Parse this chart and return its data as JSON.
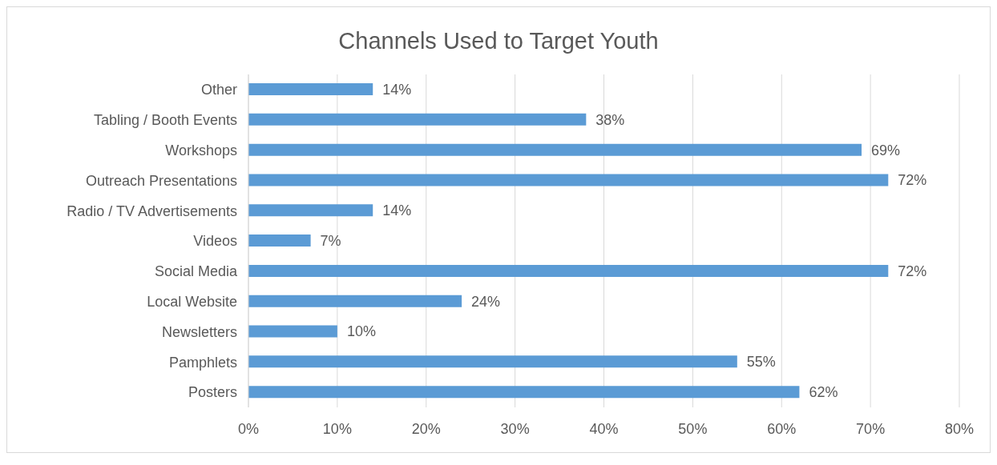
{
  "chart_data": {
    "type": "bar",
    "orientation": "horizontal",
    "title": "Channels Used to Target Youth",
    "categories": [
      "Other",
      "Tabling / Booth Events",
      "Workshops",
      "Outreach Presentations",
      "Radio / TV Advertisements",
      "Videos",
      "Social Media",
      "Local Website",
      "Newsletters",
      "Pamphlets",
      "Posters"
    ],
    "values": [
      14,
      38,
      69,
      72,
      14,
      7,
      72,
      24,
      10,
      55,
      62
    ],
    "value_labels": [
      "14%",
      "38%",
      "69%",
      "72%",
      "14%",
      "7%",
      "72%",
      "24%",
      "10%",
      "55%",
      "62%"
    ],
    "color": "#5b9bd5",
    "xlim": [
      0,
      80
    ],
    "xticks": [
      {
        "value": 0,
        "label": "0%"
      },
      {
        "value": 10,
        "label": "10%"
      },
      {
        "value": 20,
        "label": "20%"
      },
      {
        "value": 30,
        "label": "30%"
      },
      {
        "value": 40,
        "label": "40%"
      },
      {
        "value": 50,
        "label": "50%"
      },
      {
        "value": 60,
        "label": "60%"
      },
      {
        "value": 70,
        "label": "70%"
      },
      {
        "value": 80,
        "label": "80%"
      }
    ],
    "grid": "x"
  }
}
